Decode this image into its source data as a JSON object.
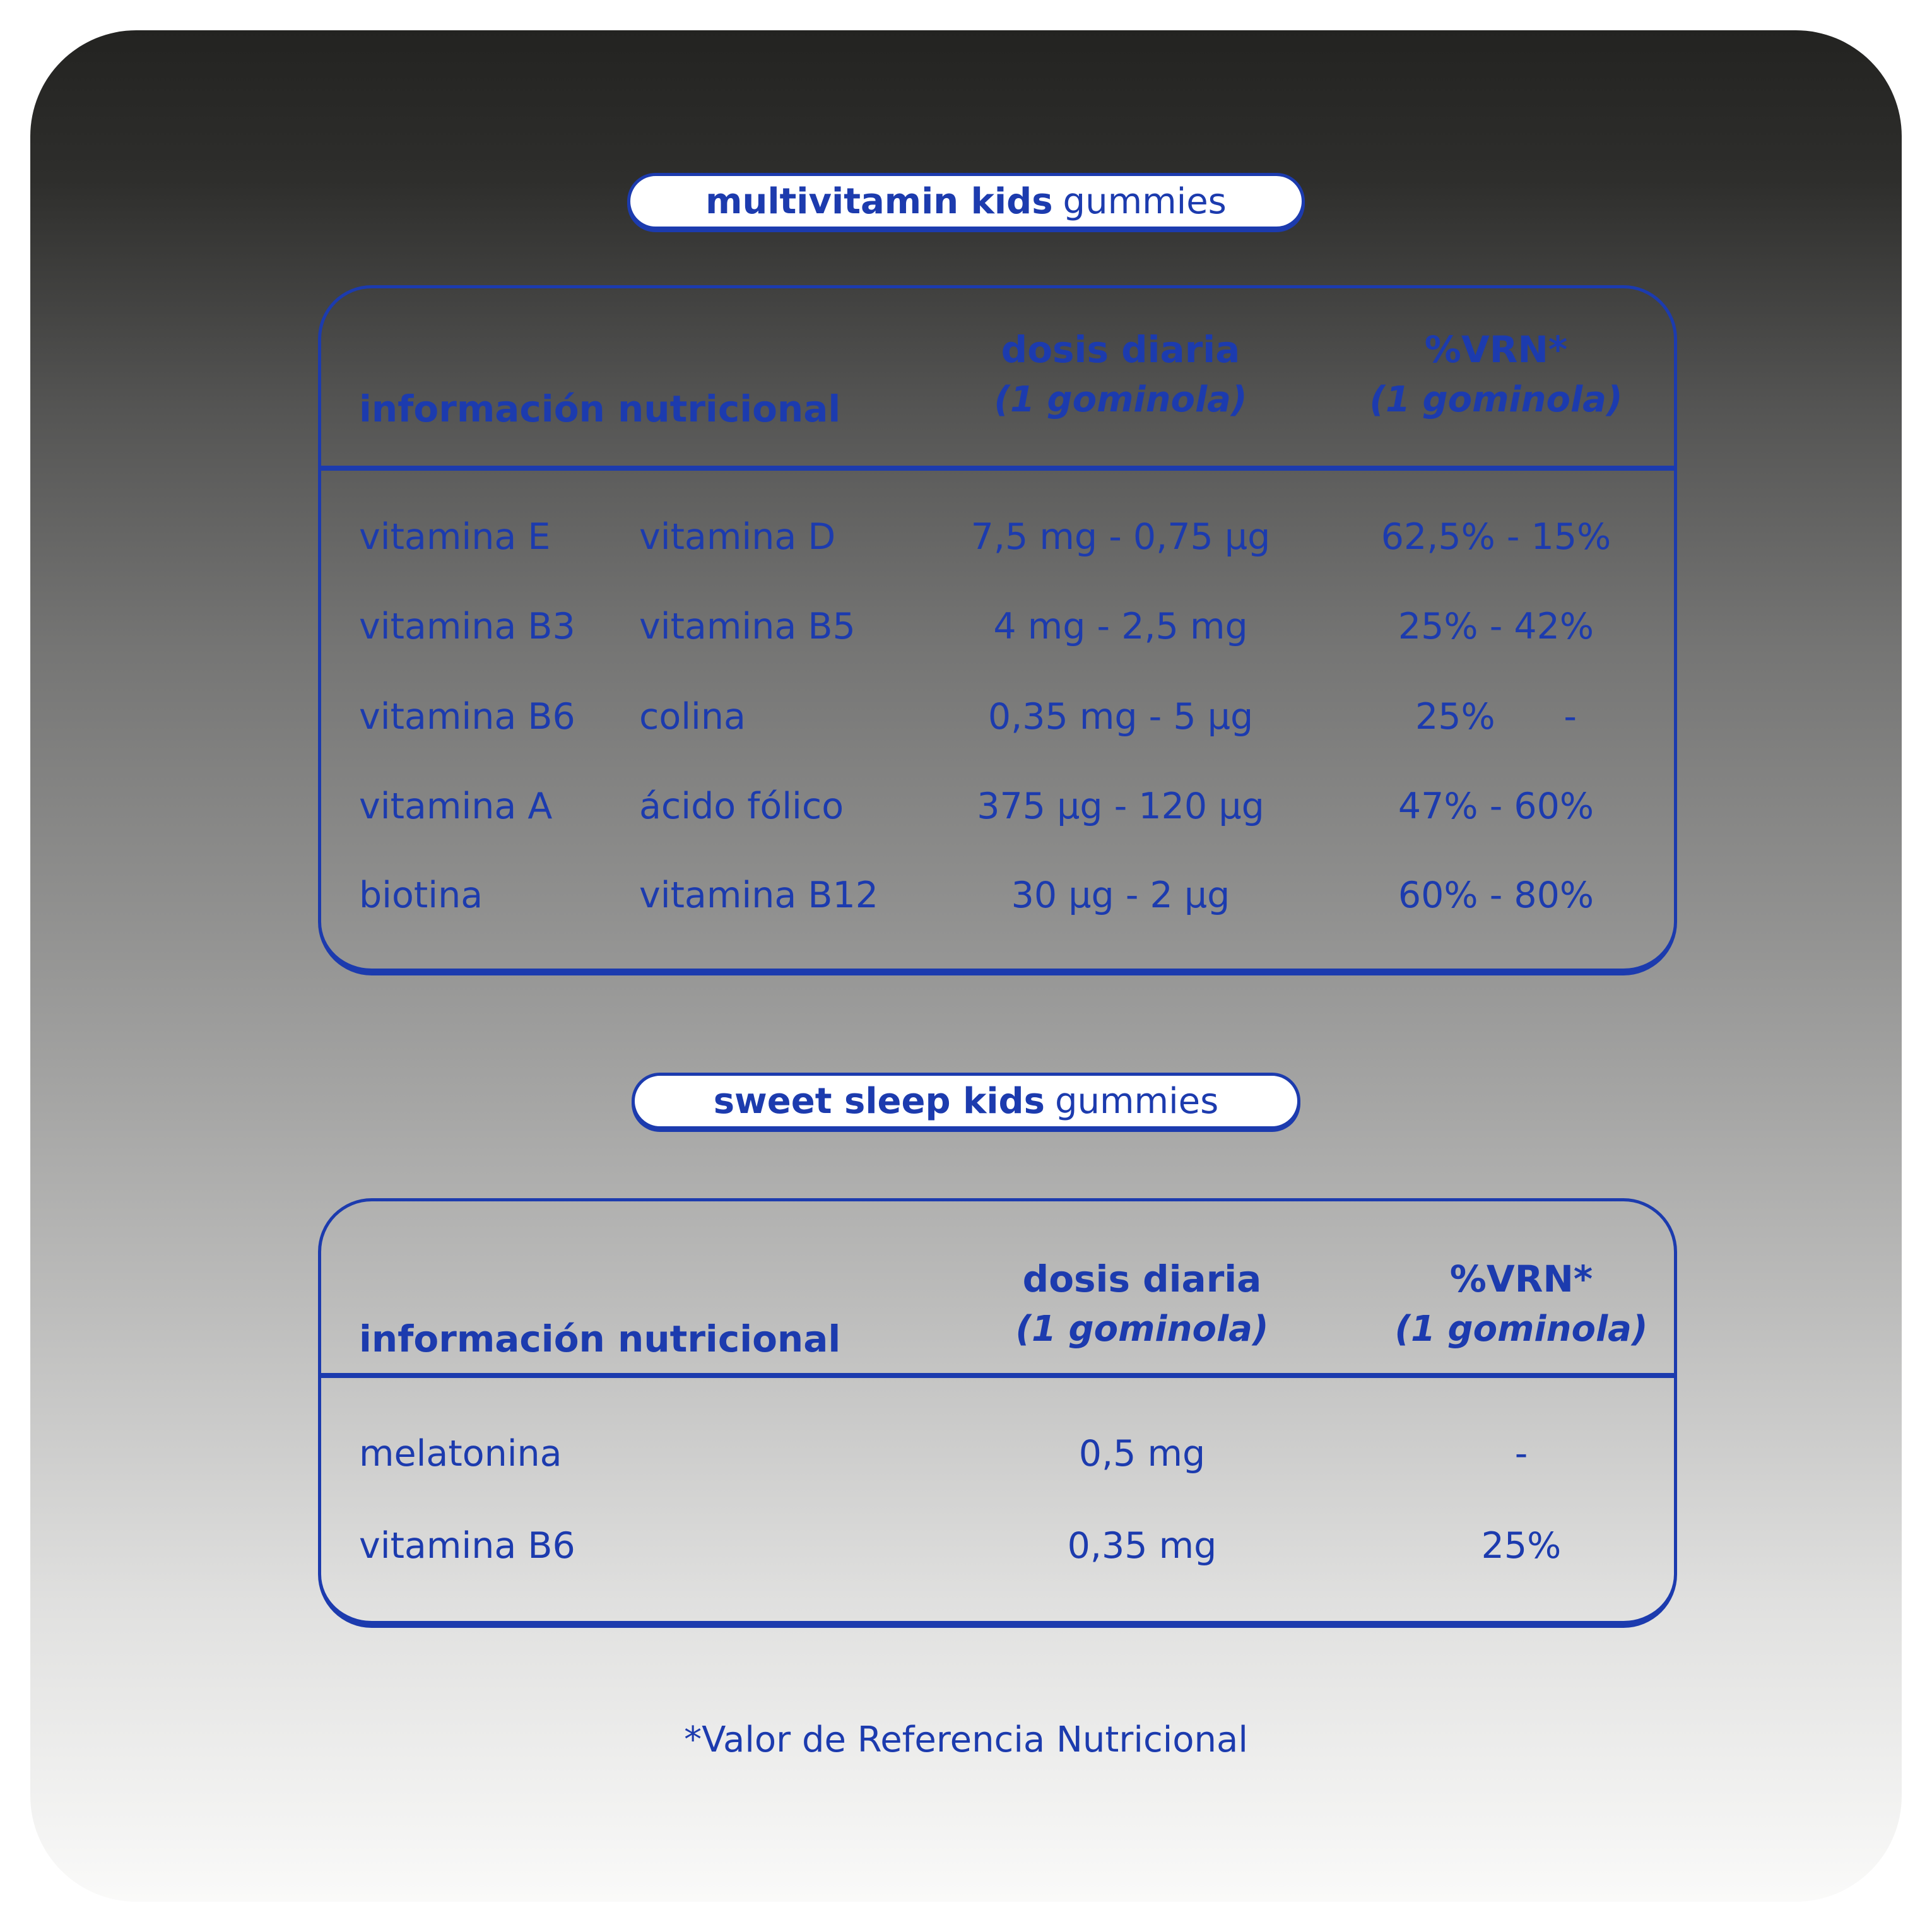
{
  "colors": {
    "accent_blue": "#1c3bae",
    "pill_background": "#ffffff",
    "card_gradient_top": "#232321",
    "card_gradient_bottom": "#fafaf9"
  },
  "section1": {
    "title": {
      "bold": "multivitamin kids",
      "regular": "gummies"
    },
    "table": {
      "header": {
        "info": "información nutricional",
        "dose_line1": "dosis diaria",
        "dose_line2": "(1 gominola)",
        "vrn_line1": "%VRN*",
        "vrn_line2": "(1 gominola)"
      },
      "rows": [
        {
          "name1": "vitamina E",
          "name2": "vitamina D",
          "dose": "7,5 mg - 0,75 µg",
          "vrn": "62,5% - 15%"
        },
        {
          "name1": "vitamina B3",
          "name2": "vitamina B5",
          "dose": "4 mg - 2,5 mg",
          "vrn": "25% - 42%"
        },
        {
          "name1": "vitamina B6",
          "name2": "colina",
          "dose": "0,35 mg - 5 µg",
          "vrn": "25%      -"
        },
        {
          "name1": "vitamina A",
          "name2": "ácido fólico",
          "dose": "375 µg - 120 µg",
          "vrn": "47% - 60%"
        },
        {
          "name1": "biotina",
          "name2": "vitamina B12",
          "dose": "30 µg - 2 µg",
          "vrn": "60% - 80%"
        }
      ]
    }
  },
  "section2": {
    "title": {
      "bold": "sweet sleep kids",
      "regular": "gummies"
    },
    "table": {
      "header": {
        "info": "información nutricional",
        "dose_line1": "dosis diaria",
        "dose_line2": "(1 gominola)",
        "vrn_line1": "%VRN*",
        "vrn_line2": "(1 gominola)"
      },
      "rows": [
        {
          "name1": "melatonina",
          "dose": "0,5 mg",
          "vrn": "-"
        },
        {
          "name1": "vitamina B6",
          "dose": "0,35 mg",
          "vrn": "25%"
        }
      ]
    }
  },
  "footnote": "*Valor de Referencia Nutricional"
}
